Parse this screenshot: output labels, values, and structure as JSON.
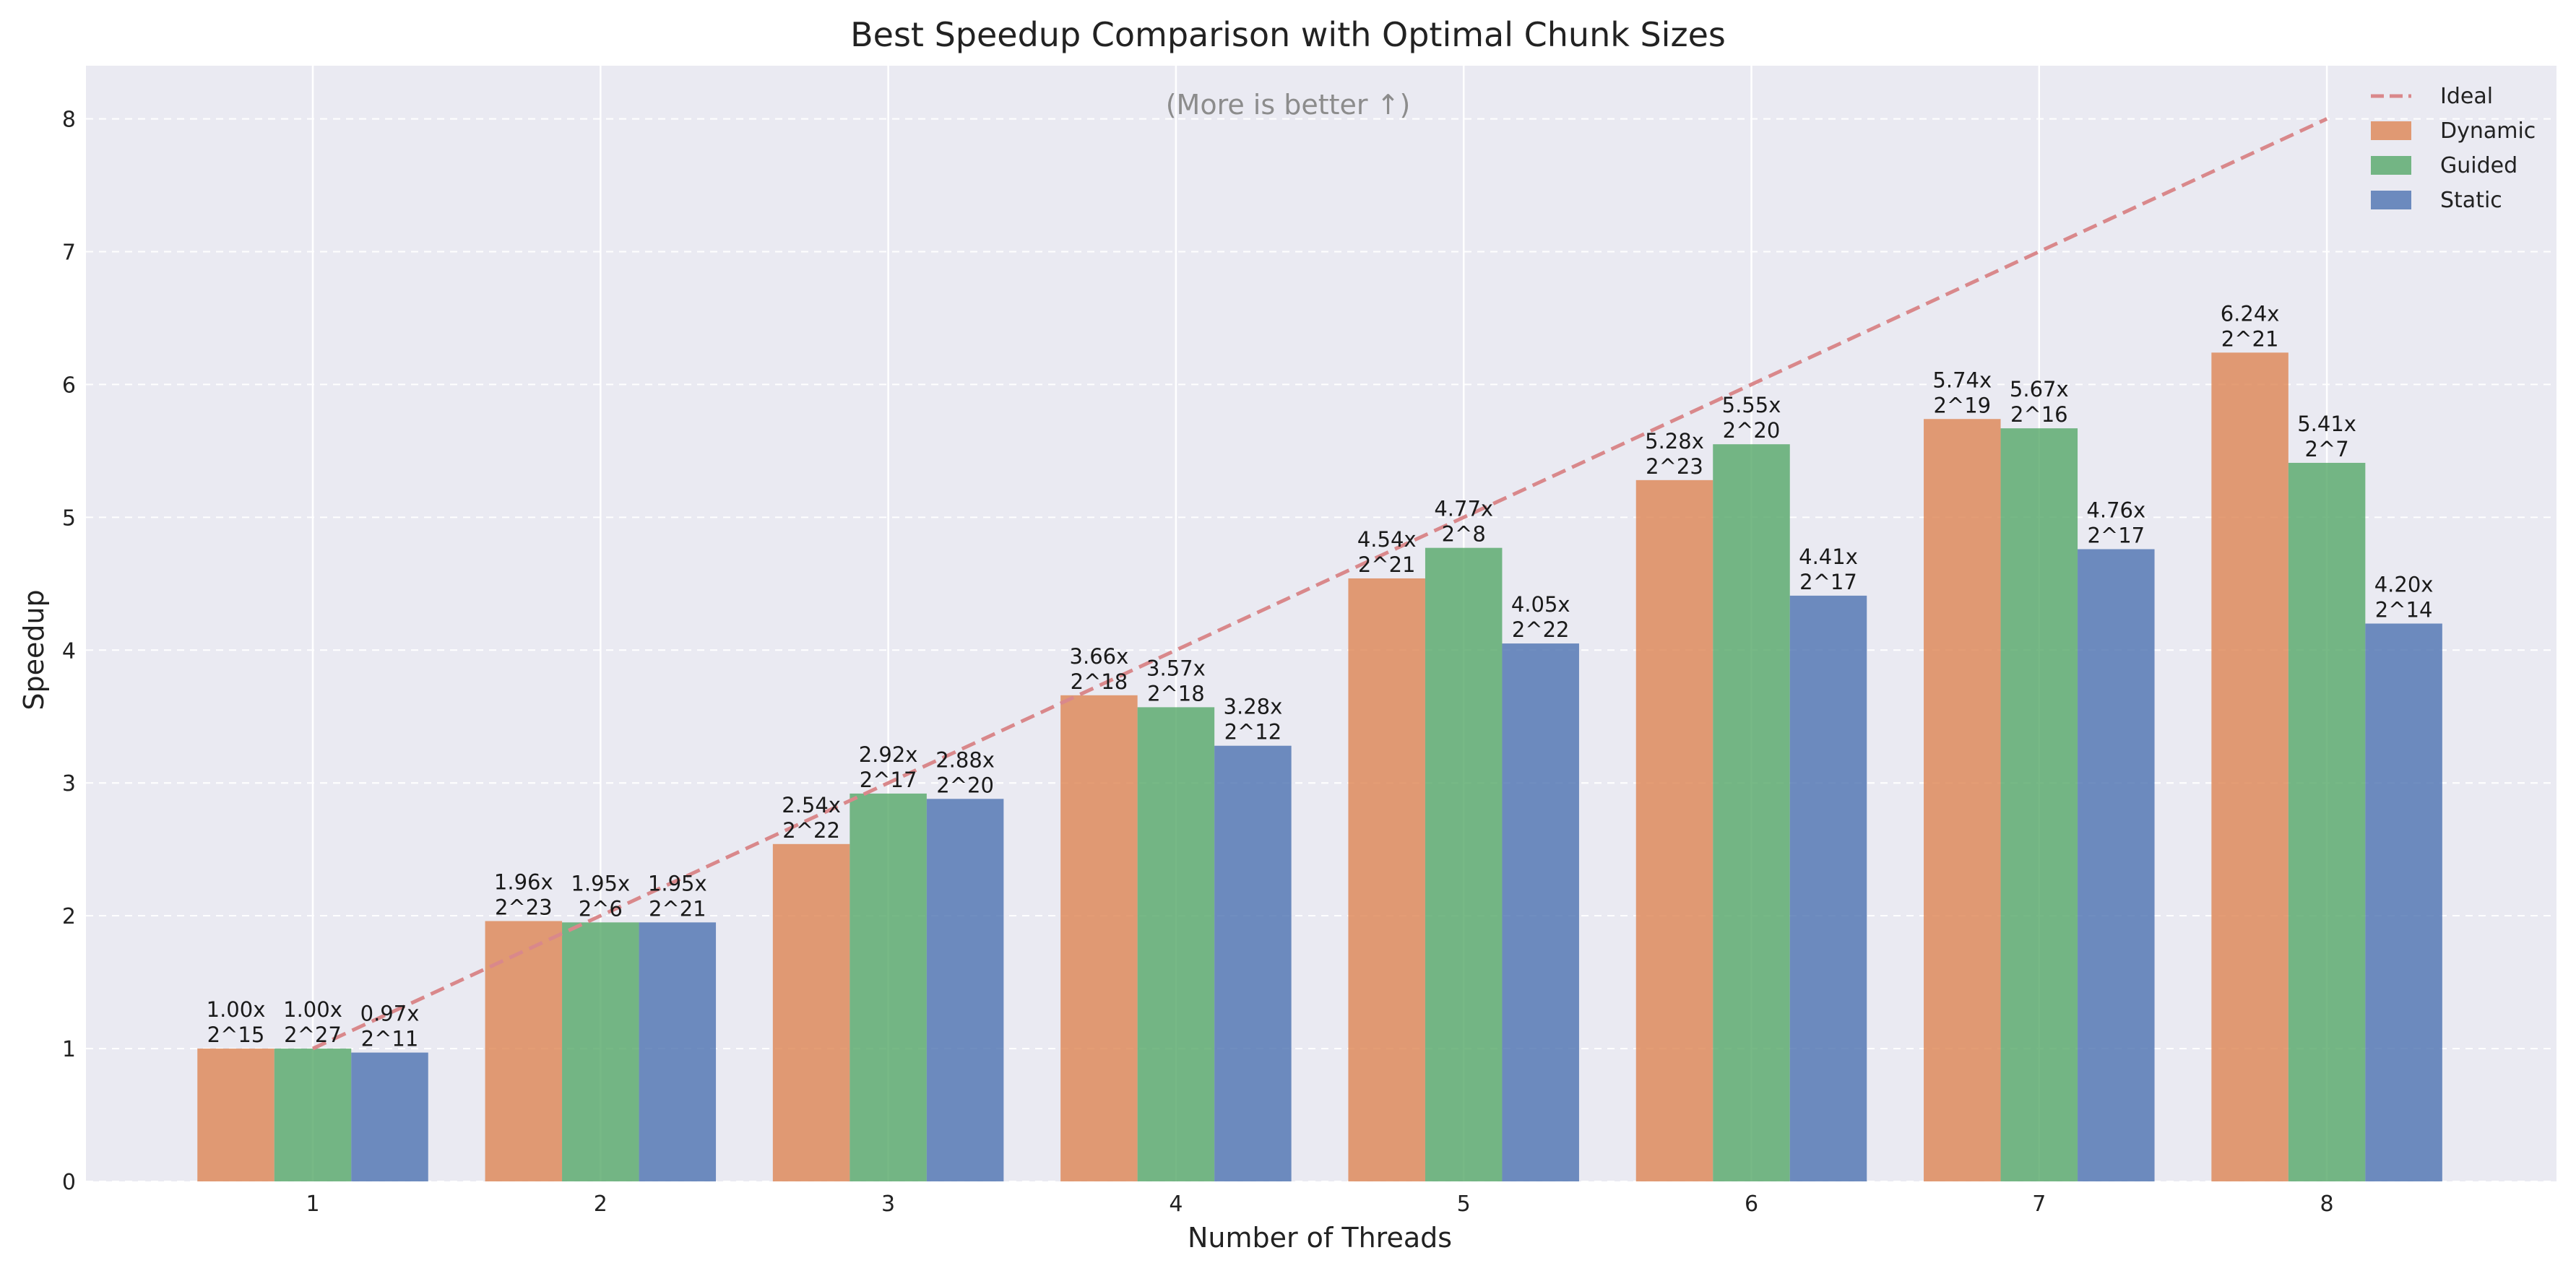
{
  "chart_data": {
    "type": "bar",
    "title": "Best Speedup Comparison with Optimal Chunk Sizes",
    "annotation": "(More is better ↑)",
    "xlabel": "Number of Threads",
    "ylabel": "Speedup",
    "categories": [
      "1",
      "2",
      "3",
      "4",
      "5",
      "6",
      "7",
      "8"
    ],
    "ylim": [
      0,
      8.4
    ],
    "yticks": [
      0,
      1,
      2,
      3,
      4,
      5,
      6,
      7,
      8
    ],
    "grid": true,
    "legend_position": "top-right",
    "series": [
      {
        "name": "Dynamic",
        "color": "#dd8452",
        "values": [
          1.0,
          1.96,
          2.54,
          3.66,
          4.54,
          5.28,
          5.74,
          6.24
        ],
        "labels": [
          "1.00x",
          "1.96x",
          "2.54x",
          "3.66x",
          "4.54x",
          "5.28x",
          "5.74x",
          "6.24x"
        ],
        "chunks": [
          "2^15",
          "2^23",
          "2^22",
          "2^18",
          "2^21",
          "2^23",
          "2^19",
          "2^21"
        ]
      },
      {
        "name": "Guided",
        "color": "#55a868",
        "values": [
          1.0,
          1.95,
          2.92,
          3.57,
          4.77,
          5.55,
          5.67,
          5.41
        ],
        "labels": [
          "1.00x",
          "1.95x",
          "2.92x",
          "3.57x",
          "4.77x",
          "5.55x",
          "5.67x",
          "5.41x"
        ],
        "chunks": [
          "2^27",
          "2^6",
          "2^17",
          "2^18",
          "2^8",
          "2^20",
          "2^16",
          "2^7"
        ]
      },
      {
        "name": "Static",
        "color": "#4c72b0",
        "values": [
          0.97,
          1.95,
          2.88,
          3.28,
          4.05,
          4.41,
          4.76,
          4.2
        ],
        "labels": [
          "0.97x",
          "1.95x",
          "2.88x",
          "3.28x",
          "4.05x",
          "4.41x",
          "4.76x",
          "4.20x"
        ],
        "chunks": [
          "2^11",
          "2^21",
          "2^20",
          "2^12",
          "2^22",
          "2^17",
          "2^17",
          "2^14"
        ]
      }
    ],
    "reference_line": {
      "name": "Ideal",
      "color": "#d9888b",
      "style": "dashed",
      "x": [
        1,
        2,
        3,
        4,
        5,
        6,
        7,
        8
      ],
      "y": [
        1,
        2,
        3,
        4,
        5,
        6,
        7,
        8
      ]
    }
  }
}
